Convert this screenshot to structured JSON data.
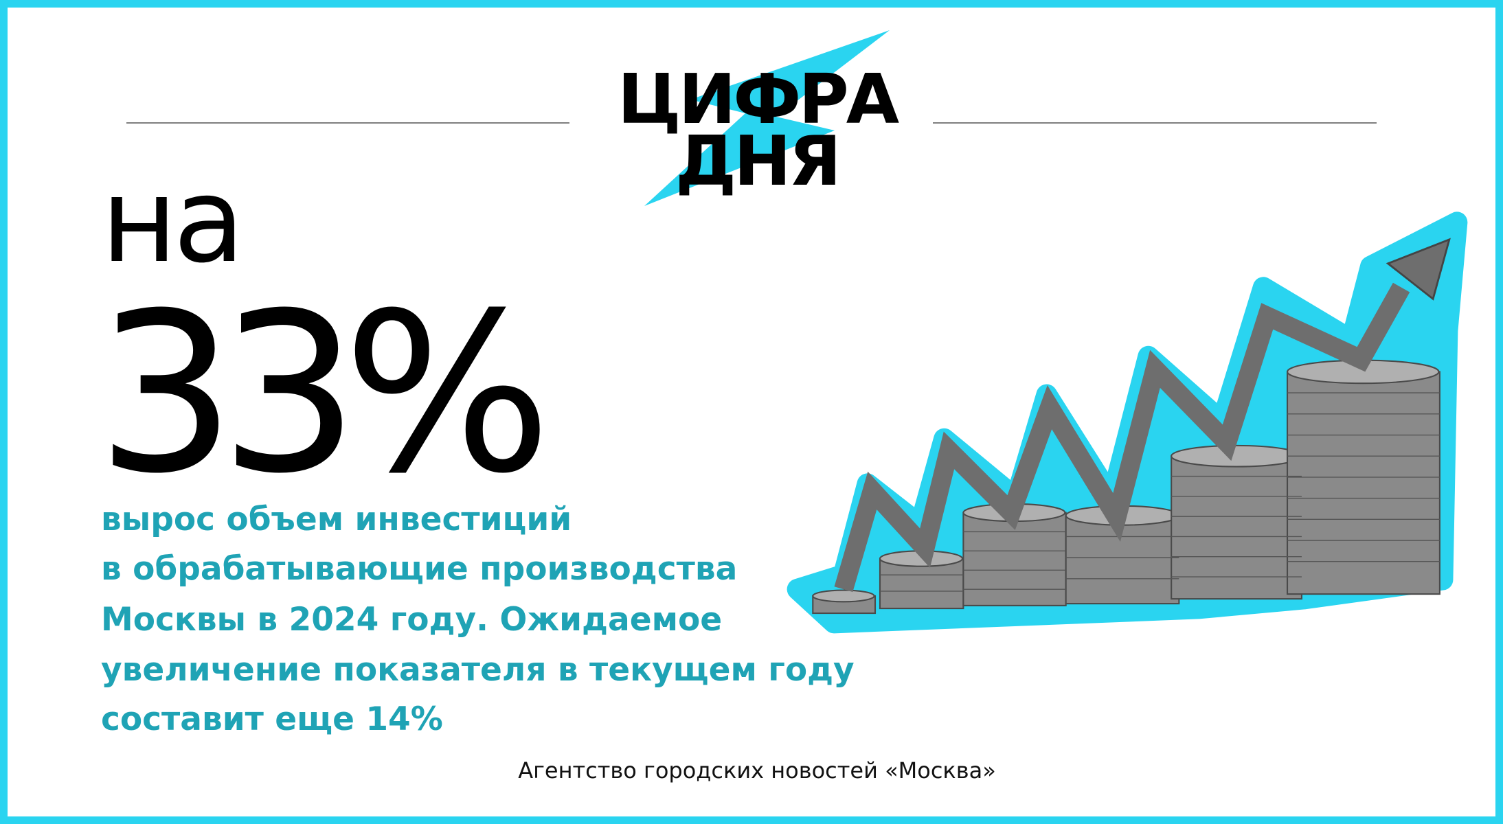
{
  "header": {
    "title_line1": "ЦИФРА",
    "title_line2": "ДНЯ"
  },
  "lead": "на",
  "figure": "33%",
  "description": [
    "вырос объем инвестиций",
    "в обрабатывающие производства",
    "Москвы в 2024 году. Ожидаемое",
    "увеличение показателя в текущем году",
    "составит еще 14%"
  ],
  "source": "Агентство городских новостей «Москва»"
}
